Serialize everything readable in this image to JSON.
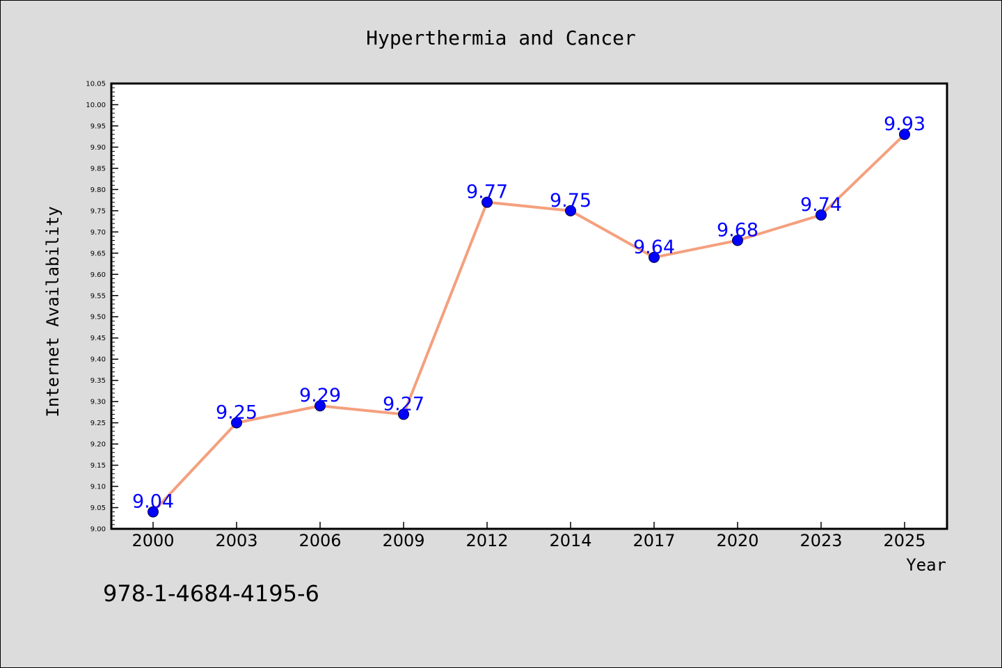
{
  "chart_data": {
    "type": "line",
    "title": "Hyperthermia and Cancer",
    "xlabel": "Year",
    "ylabel": "Internet Availability",
    "categories": [
      "2000",
      "2003",
      "2006",
      "2009",
      "2012",
      "2014",
      "2017",
      "2020",
      "2023",
      "2025"
    ],
    "values": [
      9.04,
      9.25,
      9.29,
      9.27,
      9.77,
      9.75,
      9.64,
      9.68,
      9.74,
      9.93
    ],
    "data_labels": [
      "9.04",
      "9.25",
      "9.29",
      "9.27",
      "9.77",
      "9.75",
      "9.64",
      "9.68",
      "9.74",
      "9.93"
    ],
    "ylim": [
      9.0,
      10.05
    ],
    "yticks": [
      "9.00",
      "9.05",
      "9.10",
      "9.15",
      "9.20",
      "9.25",
      "9.30",
      "9.35",
      "9.40",
      "9.45",
      "9.50",
      "9.55",
      "9.60",
      "9.65",
      "9.70",
      "9.75",
      "9.80",
      "9.85",
      "9.90",
      "9.95",
      "10.00",
      "10.05"
    ],
    "grid": false,
    "legend": "none",
    "colors": {
      "line": "#f4a07e",
      "marker": "#0000ff",
      "data_label": "#0000ff",
      "background": "#dcdcdc",
      "plot_background": "#ffffff"
    }
  },
  "annotation": {
    "isbn": "978-1-4684-4195-6"
  }
}
